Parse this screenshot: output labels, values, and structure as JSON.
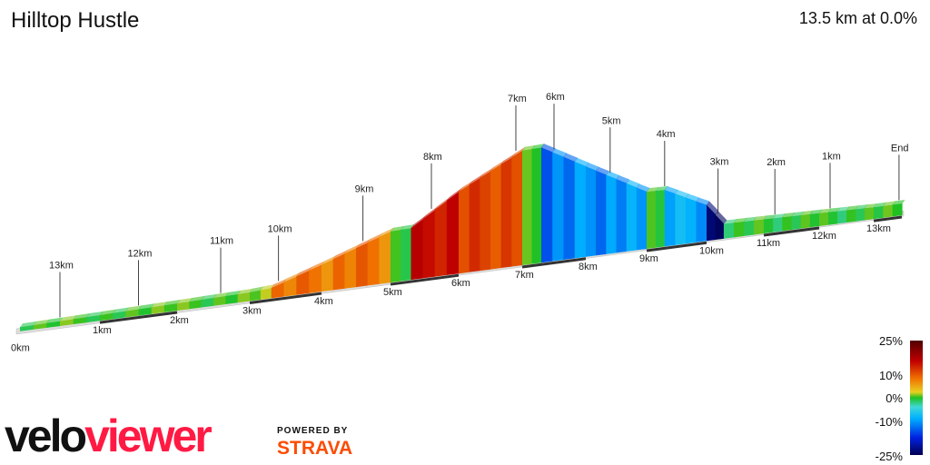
{
  "header": {
    "title": "Hilltop Hustle",
    "summary": "13.5 km at 0.0%"
  },
  "chart_data": {
    "type": "area",
    "title": "Hilltop Hustle",
    "front_km_labels": [
      "0km",
      "1km",
      "2km",
      "3km",
      "4km",
      "5km",
      "6km",
      "7km",
      "8km",
      "9km",
      "10km",
      "11km",
      "12km",
      "13km"
    ],
    "back_km_labels": [
      "13km",
      "12km",
      "11km",
      "10km",
      "9km",
      "8km",
      "7km",
      "6km",
      "5km",
      "4km",
      "3km",
      "2km",
      "1km",
      "End"
    ],
    "profile": [
      {
        "km": 0,
        "elev": 5
      },
      {
        "km": 1,
        "elev": 10
      },
      {
        "km": 2,
        "elev": 15
      },
      {
        "km": 3,
        "elev": 20
      },
      {
        "km": 3.3,
        "elev": 25
      },
      {
        "km": 4,
        "elev": 80
      },
      {
        "km": 5,
        "elev": 160
      },
      {
        "km": 5.3,
        "elev": 162
      },
      {
        "km": 6,
        "elev": 262
      },
      {
        "km": 7,
        "elev": 370
      },
      {
        "km": 7.3,
        "elev": 372
      },
      {
        "km": 8,
        "elev": 290
      },
      {
        "km": 9,
        "elev": 180
      },
      {
        "km": 9.3,
        "elev": 178
      },
      {
        "km": 10,
        "elev": 110
      },
      {
        "km": 10.3,
        "elev": 40
      },
      {
        "km": 11,
        "elev": 38
      },
      {
        "km": 12,
        "elev": 34
      },
      {
        "km": 13,
        "elev": 30
      },
      {
        "km": 13.5,
        "elev": 30
      }
    ],
    "gradient_legend": {
      "labels": [
        "25%",
        "10%",
        "0%",
        "-10%",
        "-25%"
      ],
      "range": [
        -25,
        25
      ]
    },
    "grade_colors": [
      {
        "grade": -25,
        "color": "#000050"
      },
      {
        "grade": -15,
        "color": "#0020e0"
      },
      {
        "grade": -10,
        "color": "#00b0ff"
      },
      {
        "grade": -4,
        "color": "#40d8d8"
      },
      {
        "grade": 0,
        "color": "#20c020"
      },
      {
        "grade": 4,
        "color": "#e8d020"
      },
      {
        "grade": 8,
        "color": "#f07000"
      },
      {
        "grade": 15,
        "color": "#c00000"
      },
      {
        "grade": 25,
        "color": "#500000"
      }
    ]
  },
  "branding": {
    "logo_part1": "velo",
    "logo_part2": "viewer",
    "powered_by": "POWERED BY",
    "strava": "STRAVA"
  }
}
